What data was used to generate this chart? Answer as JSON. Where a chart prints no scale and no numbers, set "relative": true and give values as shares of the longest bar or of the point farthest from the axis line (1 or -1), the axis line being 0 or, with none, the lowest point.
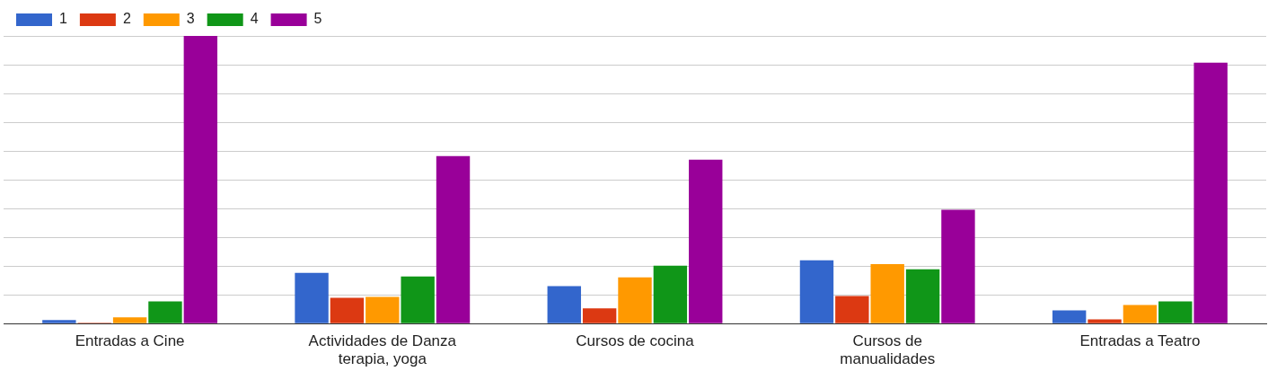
{
  "chart_data": {
    "type": "bar",
    "relative": true,
    "categories": [
      "Entradas a Cine",
      "Actividades de Danza terapia, yoga",
      "Cursos de cocina",
      "Cursos de manualidades",
      "Entradas a Teatro"
    ],
    "series": [
      {
        "name": "1",
        "color": "#3366cc",
        "values": [
          0.012,
          0.176,
          0.13,
          0.22,
          0.046
        ]
      },
      {
        "name": "2",
        "color": "#dc3912",
        "values": [
          0.003,
          0.09,
          0.053,
          0.096,
          0.015
        ]
      },
      {
        "name": "3",
        "color": "#ff9900",
        "values": [
          0.022,
          0.093,
          0.161,
          0.207,
          0.065
        ]
      },
      {
        "name": "4",
        "color": "#109618",
        "values": [
          0.077,
          0.164,
          0.201,
          0.189,
          0.077
        ]
      },
      {
        "name": "5",
        "color": "#990099",
        "values": [
          1,
          0.582,
          0.57,
          0.396,
          0.907
        ]
      }
    ],
    "grid": "y",
    "legend": "top left"
  }
}
